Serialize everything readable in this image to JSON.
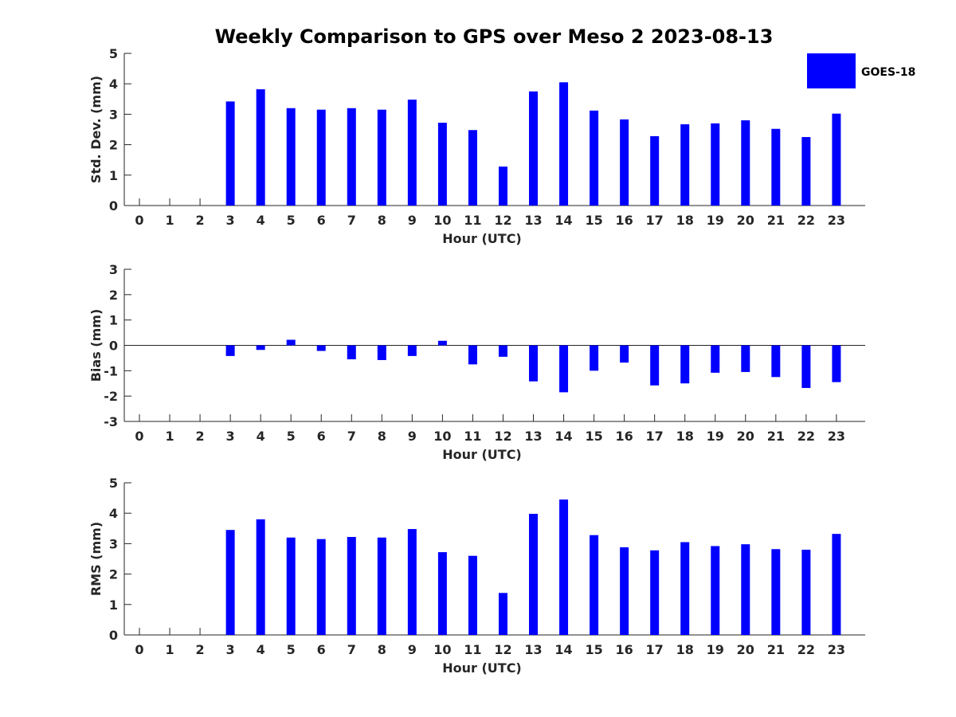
{
  "figure": {
    "title": "Weekly Comparison to GPS over Meso 2 2023-08-13",
    "bar_color": "#0000ff",
    "legend_label": "GOES-18"
  },
  "chart_data": [
    {
      "type": "bar",
      "title": "Weekly Comparison to GPS over Meso 2 2023-08-13",
      "xlabel": "Hour (UTC)",
      "ylabel": "Std. Dev. (mm)",
      "categories": [
        "0",
        "1",
        "2",
        "3",
        "4",
        "5",
        "6",
        "7",
        "8",
        "9",
        "10",
        "11",
        "12",
        "13",
        "14",
        "15",
        "16",
        "17",
        "18",
        "19",
        "20",
        "21",
        "22",
        "23"
      ],
      "series": [
        {
          "name": "GOES-18",
          "values": [
            null,
            null,
            null,
            3.42,
            3.82,
            3.2,
            3.15,
            3.2,
            3.15,
            3.48,
            2.72,
            2.48,
            1.28,
            3.75,
            4.05,
            3.12,
            2.83,
            2.28,
            2.67,
            2.7,
            2.8,
            2.52,
            2.25,
            3.02
          ]
        }
      ],
      "ylim": [
        0,
        5
      ],
      "yticks": [
        0,
        1,
        2,
        3,
        4,
        5
      ],
      "legend": "top-right"
    },
    {
      "type": "bar",
      "xlabel": "Hour (UTC)",
      "ylabel": "Bias (mm)",
      "categories": [
        "0",
        "1",
        "2",
        "3",
        "4",
        "5",
        "6",
        "7",
        "8",
        "9",
        "10",
        "11",
        "12",
        "13",
        "14",
        "15",
        "16",
        "17",
        "18",
        "19",
        "20",
        "21",
        "22",
        "23"
      ],
      "series": [
        {
          "name": "GOES-18",
          "values": [
            null,
            null,
            null,
            -0.42,
            -0.18,
            0.22,
            -0.22,
            -0.55,
            -0.58,
            -0.42,
            0.18,
            -0.75,
            -0.45,
            -1.42,
            -1.85,
            -1.0,
            -0.68,
            -1.58,
            -1.5,
            -1.08,
            -1.05,
            -1.25,
            -1.68,
            -1.45
          ]
        }
      ],
      "ylim": [
        -3,
        3
      ],
      "yticks": [
        -3,
        -2,
        -1,
        0,
        1,
        2,
        3
      ]
    },
    {
      "type": "bar",
      "xlabel": "Hour (UTC)",
      "ylabel": "RMS (mm)",
      "categories": [
        "0",
        "1",
        "2",
        "3",
        "4",
        "5",
        "6",
        "7",
        "8",
        "9",
        "10",
        "11",
        "12",
        "13",
        "14",
        "15",
        "16",
        "17",
        "18",
        "19",
        "20",
        "21",
        "22",
        "23"
      ],
      "series": [
        {
          "name": "GOES-18",
          "values": [
            null,
            null,
            null,
            3.45,
            3.8,
            3.2,
            3.15,
            3.22,
            3.2,
            3.48,
            2.72,
            2.6,
            1.38,
            3.98,
            4.45,
            3.28,
            2.88,
            2.78,
            3.05,
            2.92,
            2.98,
            2.82,
            2.8,
            3.32
          ]
        }
      ],
      "ylim": [
        0,
        5
      ],
      "yticks": [
        0,
        1,
        2,
        3,
        4,
        5
      ]
    }
  ]
}
